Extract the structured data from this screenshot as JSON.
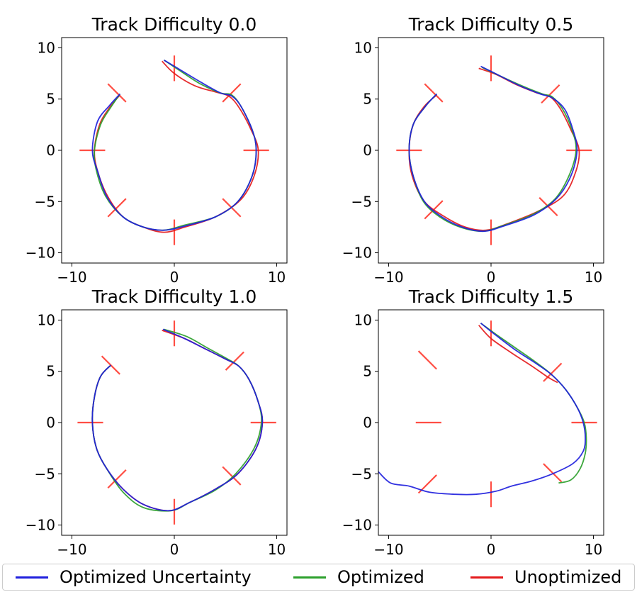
{
  "chart_data": [
    {
      "type": "line",
      "title": "Track Difficulty 0.0",
      "xlim": [
        -11,
        11
      ],
      "ylim": [
        -11,
        11
      ],
      "xticks": [
        -10,
        0,
        10
      ],
      "yticks": [
        -10,
        -5,
        0,
        5,
        10
      ],
      "xtick_labels": [
        "−10",
        "0",
        "10"
      ],
      "ytick_labels": [
        "−10",
        "−5",
        "0",
        "5",
        "10"
      ],
      "gates": [
        {
          "x": 0,
          "y": 8,
          "angle": 90
        },
        {
          "x": 5.6,
          "y": 5.6,
          "angle": 45
        },
        {
          "x": 8,
          "y": 0,
          "angle": 0
        },
        {
          "x": 5.6,
          "y": -5.6,
          "angle": -45
        },
        {
          "x": 0,
          "y": -8,
          "angle": 90
        },
        {
          "x": -5.6,
          "y": -5.6,
          "angle": 45
        },
        {
          "x": -8,
          "y": 0,
          "angle": 0
        },
        {
          "x": -5.6,
          "y": 5.6,
          "angle": -45
        }
      ],
      "series": [
        {
          "name": "Unoptimized",
          "color": "#e41a1c",
          "x": [
            -1.2,
            0,
            2,
            4,
            5.3,
            6.3,
            7.5,
            8.2,
            7.8,
            6.5,
            4,
            1,
            -1,
            -3,
            -5,
            -6.5,
            -7.5,
            -7.8,
            -7.3,
            -6.3,
            -5.3
          ],
          "y": [
            8.7,
            7.5,
            6.3,
            5.7,
            5.3,
            4.2,
            2.0,
            0,
            -2.5,
            -4.8,
            -6.5,
            -7.5,
            -8,
            -7.5,
            -6.5,
            -4.5,
            -2,
            0,
            2.5,
            4.2,
            5.4
          ]
        },
        {
          "name": "Optimized",
          "color": "#2ca02c",
          "x": [
            -1.0,
            0.5,
            2.5,
            4.5,
            5.6,
            6.5,
            7.6,
            8.0,
            7.6,
            6.2,
            4,
            1,
            -1,
            -3,
            -5,
            -6.7,
            -7.6,
            -7.8,
            -7.2,
            -6.2,
            -5.3
          ],
          "y": [
            8.8,
            7.8,
            6.5,
            5.6,
            5.4,
            4.3,
            2.0,
            0,
            -2.5,
            -5,
            -6.5,
            -7.3,
            -7.8,
            -7.5,
            -6.5,
            -4.5,
            -2,
            0,
            2.5,
            4.2,
            5.5
          ]
        },
        {
          "name": "Optimized Uncertainty",
          "color": "#1f1fdd",
          "x": [
            -1.0,
            0.5,
            2.5,
            4.5,
            5.6,
            6.5,
            7.6,
            8.0,
            7.6,
            6.2,
            4,
            1,
            -1,
            -3,
            -5,
            -6.6,
            -7.5,
            -8.0,
            -7.5,
            -6.3,
            -5.3
          ],
          "y": [
            8.8,
            7.9,
            6.7,
            5.6,
            5.3,
            4.3,
            2.0,
            0,
            -2.5,
            -5,
            -6.5,
            -7.4,
            -7.8,
            -7.5,
            -6.5,
            -4.5,
            -2,
            0,
            2.8,
            4.4,
            5.5
          ]
        }
      ]
    },
    {
      "type": "line",
      "title": "Track Difficulty 0.5",
      "xlim": [
        -11,
        11
      ],
      "ylim": [
        -11,
        11
      ],
      "xticks": [
        -10,
        0,
        10
      ],
      "yticks": [
        -10,
        -5,
        0,
        5,
        10
      ],
      "xtick_labels": [
        "−10",
        "0",
        "10"
      ],
      "ytick_labels": [
        "−10",
        "−5",
        "0",
        "5",
        "10"
      ],
      "gates": [
        {
          "x": 0,
          "y": 8,
          "angle": 90
        },
        {
          "x": 5.8,
          "y": 5.5,
          "angle": 45
        },
        {
          "x": 8.6,
          "y": 0,
          "angle": 0
        },
        {
          "x": 5.6,
          "y": -5.5,
          "angle": -45
        },
        {
          "x": 0,
          "y": -8,
          "angle": 90
        },
        {
          "x": -5.6,
          "y": -5.8,
          "angle": 45
        },
        {
          "x": -8,
          "y": 0,
          "angle": 0
        },
        {
          "x": -5.6,
          "y": 5.6,
          "angle": -45
        }
      ],
      "series": [
        {
          "name": "Unoptimized",
          "color": "#e41a1c",
          "x": [
            -1.2,
            0.5,
            2.5,
            4.5,
            5.8,
            6.8,
            7.8,
            8.6,
            8.2,
            7,
            4.5,
            1.5,
            -0.5,
            -2.5,
            -4.5,
            -6.5,
            -7.7,
            -8.0,
            -7.6,
            -6.5,
            -5.3
          ],
          "y": [
            8.0,
            7.4,
            6.4,
            5.6,
            5.2,
            4.0,
            2.0,
            0,
            -2.3,
            -4.5,
            -6.0,
            -7.2,
            -7.8,
            -7.5,
            -6.5,
            -5.0,
            -2.5,
            0,
            2.5,
            4.3,
            5.4
          ]
        },
        {
          "name": "Optimized",
          "color": "#2ca02c",
          "x": [
            -0.9,
            1,
            3,
            5,
            6,
            7,
            7.9,
            8.3,
            7.6,
            6.2,
            4,
            1,
            -0.8,
            -3,
            -5,
            -6.6,
            -7.6,
            -8.0,
            -7.6,
            -6.4,
            -5.3
          ],
          "y": [
            8.1,
            7.2,
            6.3,
            5.5,
            5.2,
            4.0,
            2.0,
            0,
            -2.5,
            -4.8,
            -6.3,
            -7.4,
            -7.9,
            -7.5,
            -6.5,
            -5.0,
            -2.5,
            0,
            2.5,
            4.3,
            5.5
          ]
        },
        {
          "name": "Optimized Uncertainty",
          "color": "#1f1fdd",
          "x": [
            -1.0,
            0.8,
            2.8,
            4.8,
            6,
            7.2,
            8.0,
            8.4,
            7.8,
            6.4,
            4.2,
            1.2,
            -0.7,
            -2.8,
            -4.8,
            -6.5,
            -7.6,
            -8.0,
            -7.6,
            -6.4,
            -5.3
          ],
          "y": [
            8.2,
            7.3,
            6.3,
            5.5,
            5.1,
            4.0,
            2.0,
            0,
            -2.5,
            -4.7,
            -6.3,
            -7.4,
            -7.9,
            -7.5,
            -6.5,
            -5.0,
            -2.5,
            0,
            2.5,
            4.3,
            5.5
          ]
        }
      ]
    },
    {
      "type": "line",
      "title": "Track Difficulty 1.0",
      "xlim": [
        -11,
        11
      ],
      "ylim": [
        -11,
        11
      ],
      "xticks": [
        -10,
        0,
        10
      ],
      "yticks": [
        -10,
        -5,
        0,
        5,
        10
      ],
      "xtick_labels": [
        "−10",
        "0",
        "10"
      ],
      "ytick_labels": [
        "−10",
        "−5",
        "0",
        "5",
        "10"
      ],
      "gates": [
        {
          "x": 0,
          "y": 8.7,
          "angle": 90
        },
        {
          "x": 5.9,
          "y": 6.0,
          "angle": 45
        },
        {
          "x": 8.7,
          "y": 0,
          "angle": 0
        },
        {
          "x": 5.6,
          "y": -5.2,
          "angle": -45
        },
        {
          "x": 0,
          "y": -8.7,
          "angle": 90
        },
        {
          "x": -5.6,
          "y": -5.5,
          "angle": 45
        },
        {
          "x": -8.2,
          "y": 0,
          "angle": 0
        },
        {
          "x": -6.2,
          "y": 5.6,
          "angle": -45
        }
      ],
      "series": [
        {
          "name": "Unoptimized",
          "color": "#e41a1c",
          "x": [
            -1.2,
            1,
            3,
            5,
            6.3,
            7.3,
            8.2,
            8.6,
            8.0,
            6.2,
            4,
            1.5,
            -0.5,
            -3,
            -5,
            -6.6,
            -7.6,
            -8.0,
            -7.8,
            -7.2,
            -6.2
          ],
          "y": [
            9.0,
            8.2,
            7.2,
            6.2,
            5.5,
            4.2,
            2.0,
            0,
            -2.5,
            -5.0,
            -6.5,
            -7.8,
            -8.6,
            -8.0,
            -6.5,
            -4.5,
            -2.5,
            0,
            2.5,
            4.5,
            5.6
          ]
        },
        {
          "name": "Optimized",
          "color": "#2ca02c",
          "x": [
            -1.0,
            1.2,
            3.2,
            5.2,
            6.3,
            7.3,
            8.2,
            8.5,
            7.8,
            6.0,
            4,
            1.5,
            -0.3,
            -3,
            -5,
            -6.6,
            -7.6,
            -8.0,
            -7.8,
            -7.2,
            -6.2
          ],
          "y": [
            9.1,
            8.4,
            7.3,
            6.2,
            5.5,
            4.2,
            2.0,
            0,
            -2.5,
            -5.0,
            -6.6,
            -7.8,
            -8.6,
            -8.3,
            -6.8,
            -4.5,
            -2.5,
            0,
            2.5,
            4.5,
            5.6
          ]
        },
        {
          "name": "Optimized Uncertainty",
          "color": "#1f1fdd",
          "x": [
            -1.1,
            1,
            3,
            5,
            6.3,
            7.3,
            8.2,
            8.6,
            8.0,
            6.2,
            4,
            1.5,
            -0.5,
            -3,
            -5,
            -6.6,
            -7.6,
            -8.0,
            -7.8,
            -7.2,
            -6.2
          ],
          "y": [
            9.1,
            8.2,
            7.2,
            6.2,
            5.5,
            4.2,
            2.0,
            0,
            -2.5,
            -5.0,
            -6.5,
            -7.8,
            -8.6,
            -8.0,
            -6.5,
            -4.5,
            -2.5,
            0,
            2.5,
            4.5,
            5.6
          ]
        }
      ]
    },
    {
      "type": "line",
      "title": "Track Difficulty 1.5",
      "xlim": [
        -11,
        11
      ],
      "ylim": [
        -11,
        11
      ],
      "xticks": [
        -10,
        0,
        10
      ],
      "yticks": [
        -10,
        -5,
        0,
        5,
        10
      ],
      "xtick_labels": [
        "−10",
        "0",
        "10"
      ],
      "ytick_labels": [
        "−10",
        "−5",
        "0",
        "5",
        "10"
      ],
      "gates": [
        {
          "x": 0,
          "y": 8.7,
          "angle": 90
        },
        {
          "x": 6.0,
          "y": 4.9,
          "angle": 45
        },
        {
          "x": 9.1,
          "y": 0,
          "angle": 0
        },
        {
          "x": 6.0,
          "y": -4.9,
          "angle": -45
        },
        {
          "x": 0,
          "y": -7.0,
          "angle": 90
        },
        {
          "x": -6.2,
          "y": -6.0,
          "angle": 45
        },
        {
          "x": -6.1,
          "y": 0,
          "angle": 0
        },
        {
          "x": -6.2,
          "y": 6.1,
          "angle": -45
        }
      ],
      "series": [
        {
          "name": "Unoptimized",
          "color": "#e41a1c",
          "x": [
            -1.2,
            0,
            2,
            4,
            5.6,
            6.5
          ],
          "y": [
            9.5,
            8.2,
            6.8,
            5.5,
            4.4,
            3.9
          ]
        },
        {
          "name": "Optimized",
          "color": "#2ca02c",
          "x": [
            -1.0,
            0.5,
            2.5,
            4.5,
            6.0,
            7.3,
            8.4,
            9.1,
            9.3,
            9.2,
            8.7,
            7.8,
            6.6
          ],
          "y": [
            9.7,
            8.6,
            7.2,
            5.8,
            4.6,
            3.2,
            1.5,
            0,
            -1.5,
            -3.0,
            -4.5,
            -5.6,
            -5.9
          ]
        },
        {
          "name": "Optimized Uncertainty",
          "color": "#1f1fdd",
          "x": [
            -1.0,
            0.5,
            2.5,
            4.5,
            6.0,
            7.3,
            8.4,
            9.0,
            9.2,
            9.0,
            8.0,
            6.0,
            4.0,
            2.0,
            0.5,
            -1.5,
            -3.5,
            -6.0,
            -8.0,
            -9.8,
            -11.0
          ],
          "y": [
            9.7,
            8.5,
            7.0,
            5.7,
            4.6,
            3.2,
            1.5,
            0,
            -1.5,
            -2.8,
            -4.0,
            -5.0,
            -5.7,
            -6.2,
            -6.7,
            -7.0,
            -7.0,
            -6.8,
            -6.2,
            -5.9,
            -4.8
          ]
        }
      ]
    }
  ],
  "legend": {
    "placement": "bottom",
    "items": [
      {
        "label": "Optimized Uncertainty",
        "color": "#1f1fdd"
      },
      {
        "label": "Optimized",
        "color": "#2ca02c"
      },
      {
        "label": "Unoptimized",
        "color": "#e41a1c"
      }
    ]
  }
}
